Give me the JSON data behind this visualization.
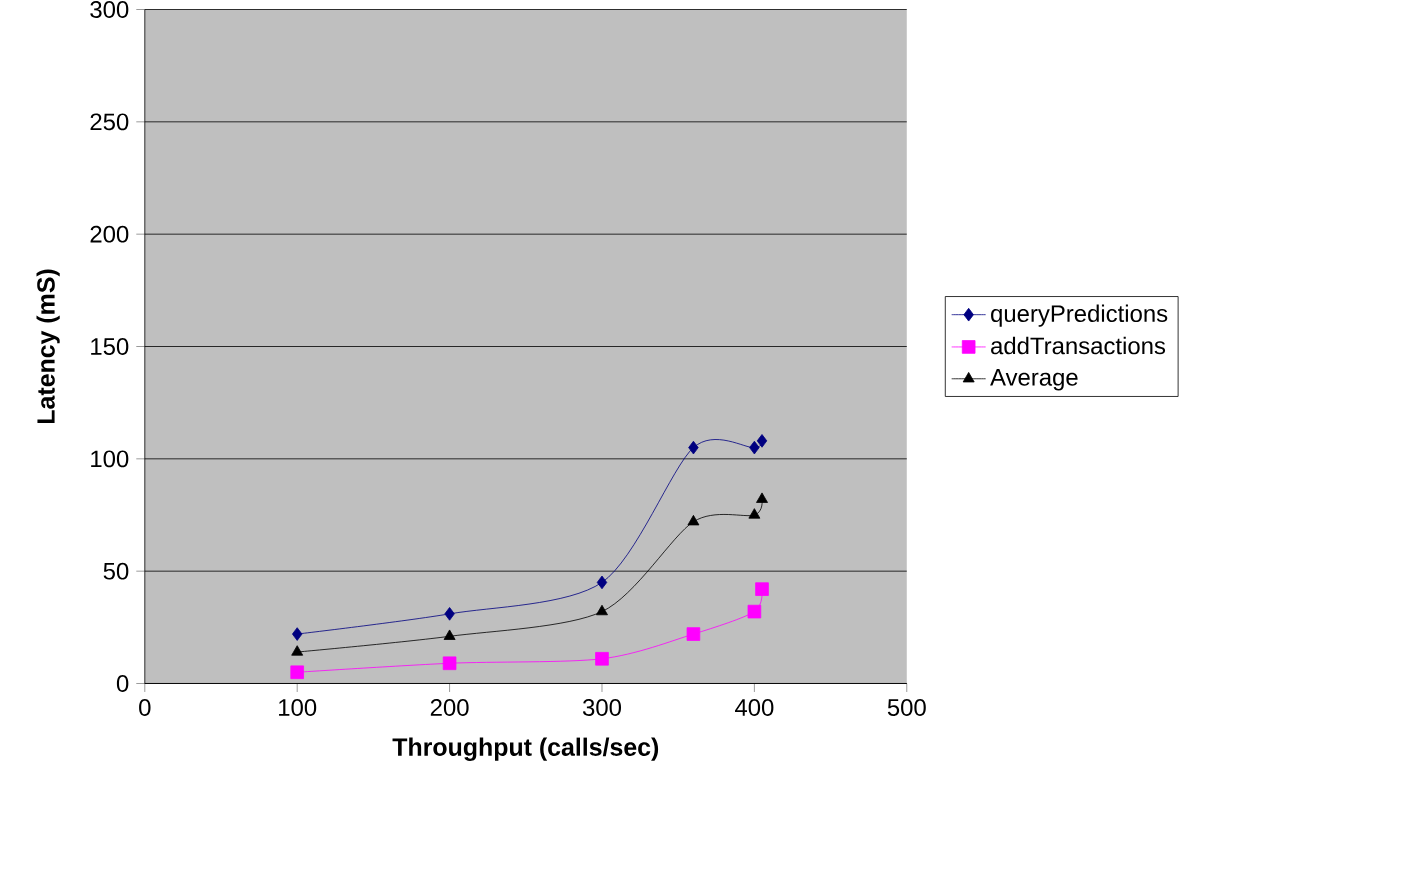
{
  "chart_data": {
    "type": "line",
    "xlabel": "Throughput (calls/sec)",
    "ylabel": "Latency (mS)",
    "xlim": [
      0,
      500
    ],
    "ylim": [
      0,
      300
    ],
    "xticks": [
      0,
      100,
      200,
      300,
      400,
      500
    ],
    "yticks": [
      0,
      50,
      100,
      150,
      200,
      250,
      300
    ],
    "grid": "y",
    "legend": "right",
    "line_style": "solid",
    "series": [
      {
        "name": "queryPredictions",
        "color": "#000080",
        "marker": "diamond",
        "x": [
          100,
          200,
          300,
          360,
          400,
          405
        ],
        "values": [
          22,
          31,
          45,
          105,
          105,
          108
        ]
      },
      {
        "name": "addTransactions",
        "color": "#ff00ff",
        "marker": "square",
        "x": [
          100,
          200,
          300,
          360,
          400,
          405
        ],
        "values": [
          5,
          9,
          11,
          22,
          32,
          42
        ]
      },
      {
        "name": "Average",
        "color": "#000000",
        "marker": "triangle",
        "x": [
          100,
          200,
          300,
          360,
          400,
          405
        ],
        "values": [
          14,
          21,
          32,
          72,
          75,
          82
        ]
      }
    ]
  }
}
